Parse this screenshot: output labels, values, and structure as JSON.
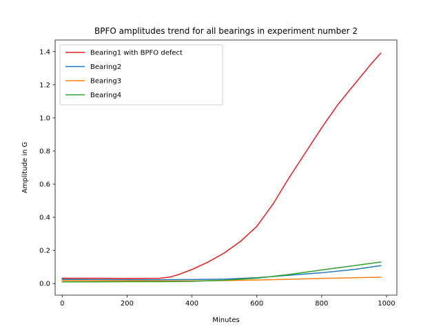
{
  "chart_data": {
    "type": "line",
    "title": "BPFO amplitudes trend for all bearings in experiment number 2",
    "xlabel": "Minutes",
    "ylabel": "Amplitude in G",
    "xlim": [
      -22,
      1032
    ],
    "ylim": [
      -0.07,
      1.47
    ],
    "xticks": [
      0,
      200,
      400,
      600,
      800,
      1000
    ],
    "yticks": [
      0.0,
      0.2,
      0.4,
      0.6,
      0.8,
      1.0,
      1.2,
      1.4
    ],
    "xtick_labels": [
      "0",
      "200",
      "400",
      "600",
      "800",
      "1000"
    ],
    "ytick_labels": [
      "0.0",
      "0.2",
      "0.4",
      "0.6",
      "0.8",
      "1.0",
      "1.2",
      "1.4"
    ],
    "grid": false,
    "legend_position": "top-left",
    "series": [
      {
        "name": "Bearing1 with BPFO defect",
        "color": "#e41a1c",
        "x": [
          0,
          100,
          200,
          300,
          330,
          360,
          400,
          450,
          500,
          550,
          600,
          650,
          700,
          750,
          800,
          850,
          900,
          950,
          982
        ],
        "y": [
          0.032,
          0.032,
          0.031,
          0.032,
          0.038,
          0.055,
          0.085,
          0.13,
          0.185,
          0.255,
          0.345,
          0.48,
          0.64,
          0.79,
          0.94,
          1.08,
          1.2,
          1.32,
          1.39
        ]
      },
      {
        "name": "Bearing2",
        "color": "#1f77b4",
        "x": [
          0,
          100,
          200,
          300,
          400,
          500,
          600,
          700,
          800,
          900,
          982
        ],
        "y": [
          0.025,
          0.024,
          0.023,
          0.023,
          0.024,
          0.027,
          0.035,
          0.05,
          0.065,
          0.085,
          0.108
        ]
      },
      {
        "name": "Bearing3",
        "color": "#ff7f0e",
        "x": [
          0,
          100,
          200,
          300,
          400,
          500,
          600,
          700,
          800,
          900,
          982
        ],
        "y": [
          0.018,
          0.017,
          0.017,
          0.016,
          0.016,
          0.018,
          0.021,
          0.026,
          0.031,
          0.035,
          0.038
        ]
      },
      {
        "name": "Bearing4",
        "color": "#2ca02c",
        "x": [
          0,
          100,
          200,
          300,
          400,
          500,
          600,
          700,
          800,
          900,
          982
        ],
        "y": [
          0.01,
          0.01,
          0.011,
          0.011,
          0.013,
          0.02,
          0.032,
          0.055,
          0.082,
          0.108,
          0.13
        ]
      }
    ]
  }
}
